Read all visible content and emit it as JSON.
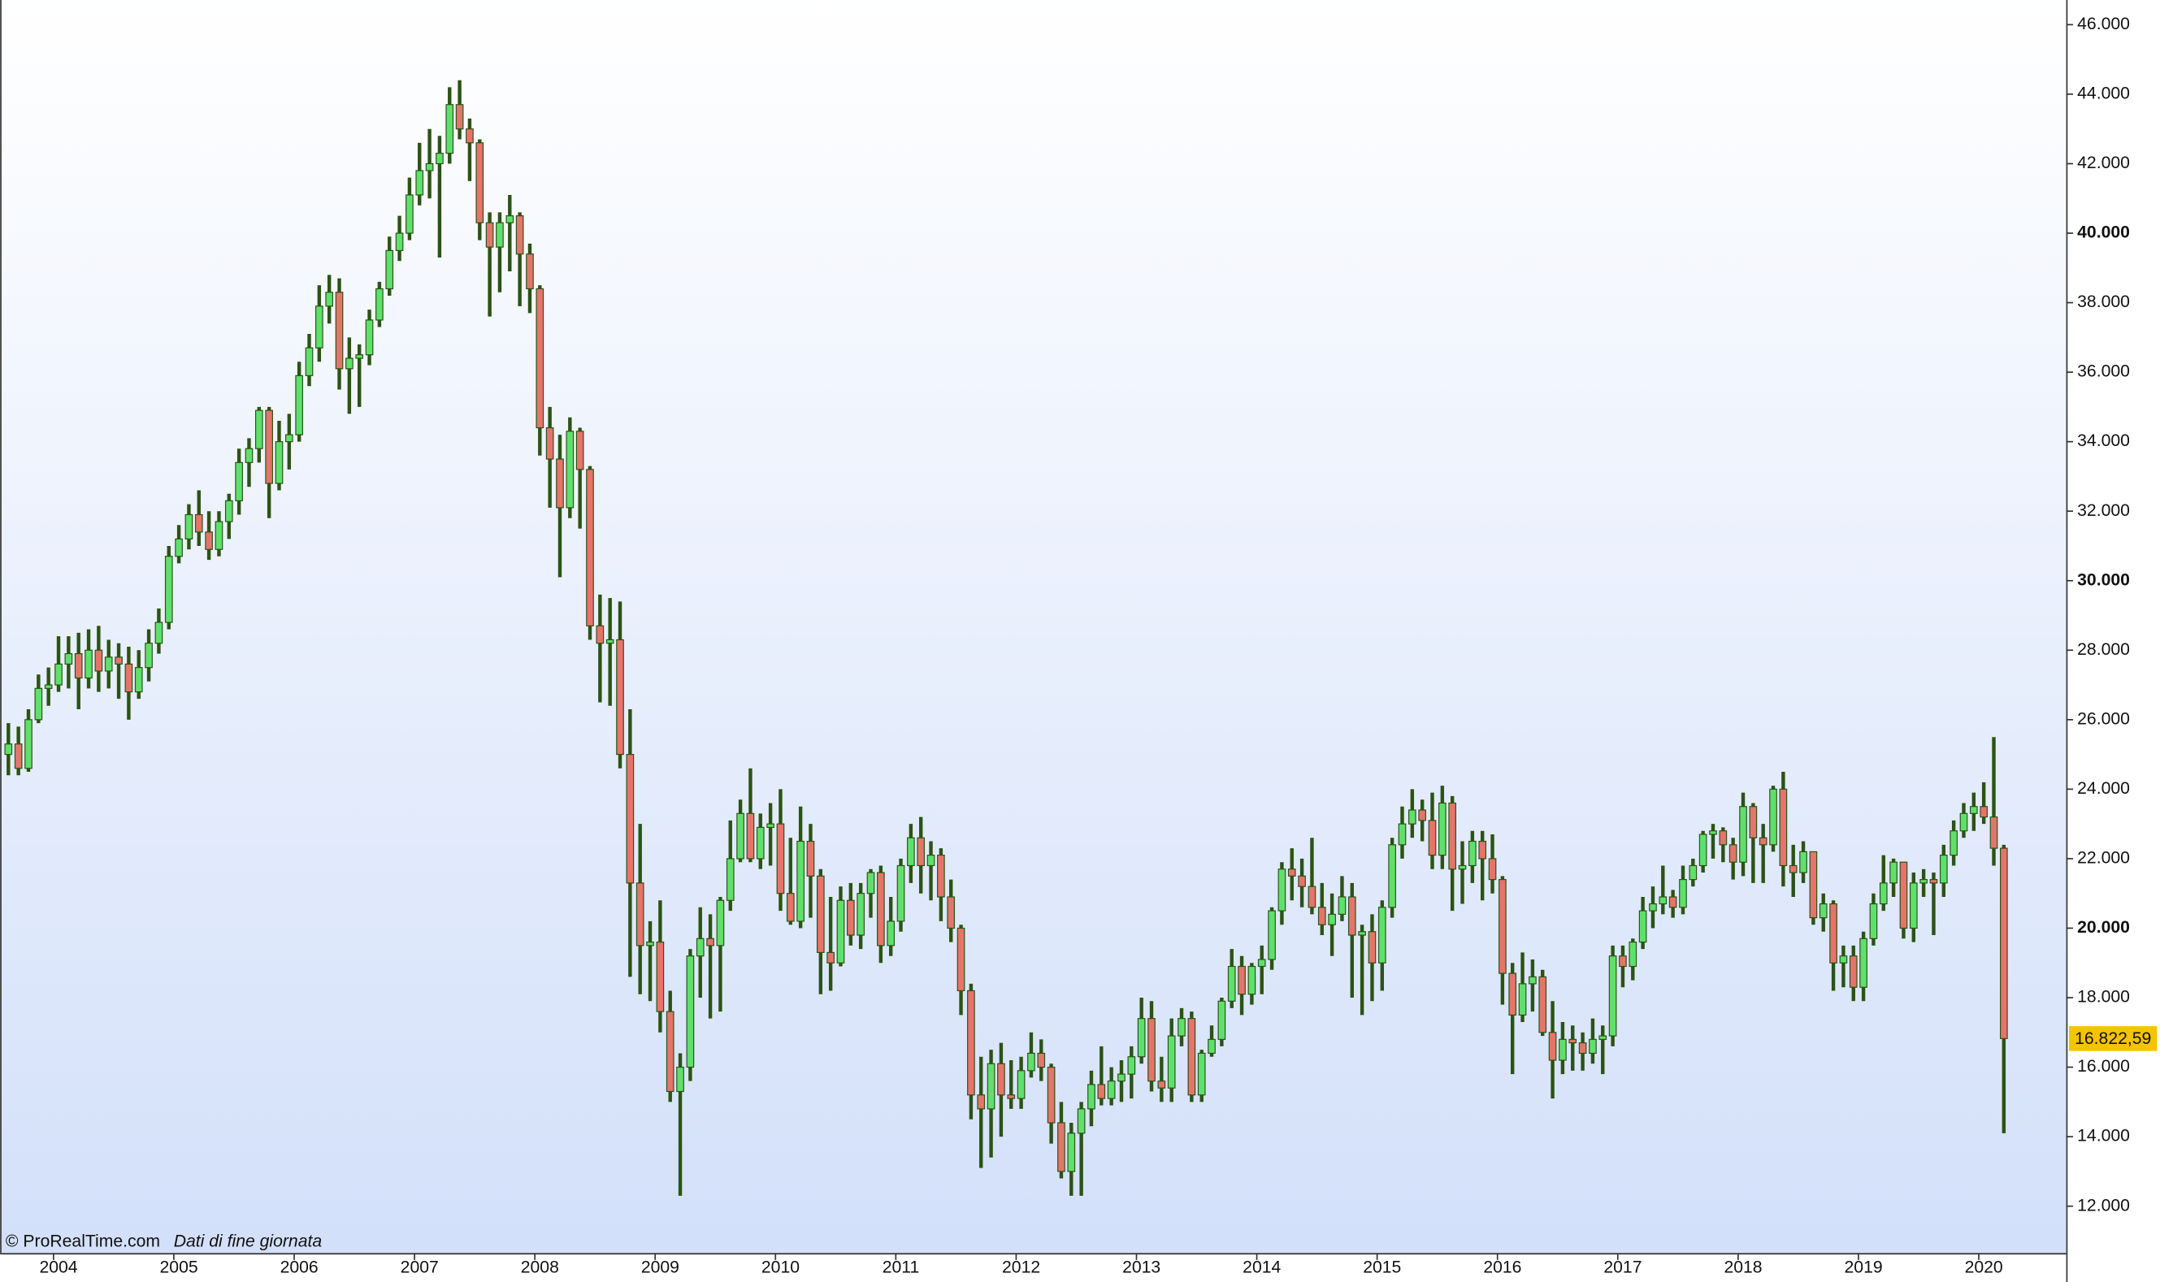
{
  "chart_data": {
    "type": "candlestick",
    "source": "© ProRealTime.com",
    "note": "Dati di fine giornata",
    "up_color": "#5fe06c",
    "down_color": "#e5746b",
    "wick_color": "#2b5314",
    "ylim": [
      10650,
      46710
    ],
    "yticks": [
      {
        "value": 12000,
        "label": "12.000"
      },
      {
        "value": 14000,
        "label": "14.000"
      },
      {
        "value": 16000,
        "label": "16.000"
      },
      {
        "value": 18000,
        "label": "18.000"
      },
      {
        "value": 20000,
        "label": "20.000"
      },
      {
        "value": 22000,
        "label": "22.000"
      },
      {
        "value": 24000,
        "label": "24.000"
      },
      {
        "value": 26000,
        "label": "26.000"
      },
      {
        "value": 28000,
        "label": "28.000"
      },
      {
        "value": 30000,
        "label": "30.000"
      },
      {
        "value": 32000,
        "label": "32.000"
      },
      {
        "value": 34000,
        "label": "34.000"
      },
      {
        "value": 36000,
        "label": "36.000"
      },
      {
        "value": 38000,
        "label": "38.000"
      },
      {
        "value": 40000,
        "label": "40.000"
      },
      {
        "value": 42000,
        "label": "42.000"
      },
      {
        "value": 44000,
        "label": "44.000"
      },
      {
        "value": 46000,
        "label": "46.000"
      }
    ],
    "last_price": {
      "value": 16822.59,
      "label": "16.822,59"
    },
    "categories": [
      null,
      null,
      null,
      null,
      null,
      "2004",
      null,
      null,
      null,
      null,
      null,
      null,
      null,
      null,
      null,
      null,
      null,
      "2005",
      null,
      null,
      null,
      null,
      null,
      null,
      null,
      null,
      null,
      null,
      null,
      "2006",
      null,
      null,
      null,
      null,
      null,
      null,
      null,
      null,
      null,
      null,
      null,
      "2007",
      null,
      null,
      null,
      null,
      null,
      null,
      null,
      null,
      null,
      null,
      null,
      "2008",
      null,
      null,
      null,
      null,
      null,
      null,
      null,
      null,
      null,
      null,
      null,
      "2009",
      null,
      null,
      null,
      null,
      null,
      null,
      null,
      null,
      null,
      null,
      null,
      "2010",
      null,
      null,
      null,
      null,
      null,
      null,
      null,
      null,
      null,
      null,
      null,
      "2011",
      null,
      null,
      null,
      null,
      null,
      null,
      null,
      null,
      null,
      null,
      null,
      "2012",
      null,
      null,
      null,
      null,
      null,
      null,
      null,
      null,
      null,
      null,
      null,
      "2013",
      null,
      null,
      null,
      null,
      null,
      null,
      null,
      null,
      null,
      null,
      null,
      "2014",
      null,
      null,
      null,
      null,
      null,
      null,
      null,
      null,
      null,
      null,
      null,
      "2015",
      null,
      null,
      null,
      null,
      null,
      null,
      null,
      null,
      null,
      null,
      null,
      "2016",
      null,
      null,
      null,
      null,
      null,
      null,
      null,
      null,
      null,
      null,
      null,
      "2017",
      null,
      null,
      null,
      null,
      null,
      null,
      null,
      null,
      null,
      null,
      null,
      "2018",
      null,
      null,
      null,
      null,
      null,
      null,
      null,
      null,
      null,
      null,
      null,
      "2019",
      null,
      null,
      null,
      null,
      null,
      null,
      null,
      null,
      null,
      null,
      null,
      "2020",
      null,
      null
    ],
    "open": [
      25000,
      25300,
      24600,
      26000,
      26900,
      27000,
      27600,
      27900,
      27200,
      28000,
      27400,
      27800,
      27600,
      26800,
      27500,
      28200,
      28800,
      30700,
      31200,
      31900,
      31400,
      30900,
      31700,
      32300,
      33400,
      33800,
      34900,
      32800,
      34000,
      34200,
      35900,
      36700,
      37900,
      38300,
      36100,
      36400,
      36500,
      37500,
      38400,
      39500,
      40000,
      41100,
      41800,
      42000,
      42300,
      43700,
      43000,
      42600,
      40300,
      39600,
      40300,
      40500,
      39400,
      38400,
      34400,
      33500,
      32100,
      34300,
      33200,
      28700,
      28200,
      28300,
      25000,
      21300,
      19500,
      19600,
      17600,
      15300,
      16000,
      19200,
      19700,
      19500,
      20800,
      22000,
      23300,
      22000,
      22900,
      23000,
      21000,
      20200,
      22500,
      21500,
      19300,
      19000,
      20800,
      19800,
      21000,
      21600,
      19500,
      20200,
      21800,
      22600,
      21800,
      22100,
      20900,
      20000,
      18200,
      15200,
      14800,
      16100,
      15200,
      15100,
      15900,
      16400,
      16000,
      14400,
      13000,
      14100,
      14800,
      15500,
      15100,
      15600,
      15800,
      16300,
      17400,
      15600,
      15400,
      16900,
      17400,
      15200,
      16400,
      16800,
      17900,
      18900,
      18100,
      18900,
      19100,
      20500,
      21700,
      21500,
      21200,
      20600,
      20100,
      20400,
      20900,
      19800,
      19900,
      19000,
      20600,
      22400,
      23000,
      23400,
      23100,
      22100,
      23600,
      21700,
      21800,
      22500,
      22000,
      21400,
      18700,
      17500,
      18400,
      18600,
      17000,
      16200,
      16800,
      16700,
      16400,
      16800,
      16900,
      19200,
      18900,
      19600,
      20500,
      20700,
      20900,
      20600,
      21400,
      21800,
      22700,
      22800,
      22400,
      21900,
      23500,
      22600,
      22400,
      24000,
      21800,
      21600,
      22200,
      20300,
      20700,
      19000,
      19200,
      18300,
      19700,
      20700,
      21300,
      21900,
      20000,
      21300,
      21400,
      21300,
      22100,
      22800,
      23300,
      23500,
      23200,
      22300
    ],
    "high": [
      25900,
      25800,
      26300,
      27300,
      27500,
      28400,
      28400,
      28500,
      28600,
      28700,
      28300,
      28200,
      28100,
      28000,
      28600,
      29200,
      31000,
      31600,
      32200,
      32600,
      32000,
      32000,
      32500,
      33800,
      34100,
      35000,
      35000,
      34600,
      34800,
      36300,
      37100,
      38500,
      38800,
      38700,
      37000,
      36800,
      37800,
      38600,
      39900,
      40500,
      41600,
      42600,
      43000,
      42800,
      44200,
      44400,
      43300,
      42700,
      40600,
      40600,
      41100,
      40600,
      39700,
      38500,
      35000,
      34200,
      34700,
      34400,
      33300,
      29600,
      29500,
      29400,
      26300,
      23000,
      20200,
      20800,
      18200,
      16400,
      19400,
      20600,
      20400,
      20900,
      23100,
      23700,
      24600,
      23300,
      23600,
      24000,
      22600,
      23500,
      23000,
      21700,
      20900,
      21200,
      21300,
      21300,
      21700,
      21800,
      20900,
      22000,
      23000,
      23200,
      22500,
      22300,
      21400,
      20100,
      18400,
      16300,
      16500,
      16700,
      16200,
      16300,
      17000,
      16800,
      16100,
      15000,
      14400,
      15000,
      15900,
      16600,
      16000,
      16200,
      16600,
      18000,
      17900,
      16300,
      17400,
      17700,
      17600,
      16500,
      17200,
      18000,
      19400,
      19200,
      19000,
      19500,
      20600,
      21900,
      22300,
      22000,
      22600,
      21300,
      21000,
      21500,
      21300,
      20100,
      20400,
      20800,
      22600,
      23500,
      24000,
      23700,
      23900,
      24100,
      23800,
      22500,
      22800,
      22800,
      22700,
      21500,
      19000,
      19300,
      19100,
      18800,
      17900,
      17300,
      17200,
      17000,
      17400,
      17200,
      19500,
      19500,
      19700,
      20900,
      21200,
      21800,
      21100,
      21800,
      22000,
      22800,
      23000,
      22900,
      22600,
      23900,
      23600,
      23000,
      24100,
      24500,
      22400,
      22500,
      22200,
      21000,
      20800,
      19500,
      19500,
      19900,
      21000,
      22100,
      22000,
      21900,
      21600,
      21700,
      21600,
      22400,
      23100,
      23600,
      23900,
      24200,
      25500,
      22400
    ],
    "low": [
      24400,
      24400,
      24500,
      25900,
      26400,
      26800,
      26900,
      26300,
      26900,
      26800,
      26900,
      26600,
      26000,
      26600,
      27100,
      27900,
      28600,
      30500,
      30900,
      31000,
      30600,
      30700,
      31200,
      31900,
      32700,
      33400,
      31800,
      32600,
      33200,
      34000,
      35600,
      36300,
      37400,
      35500,
      34800,
      35000,
      36200,
      37300,
      38200,
      39200,
      39800,
      40800,
      41000,
      39300,
      42000,
      42700,
      41500,
      39800,
      37600,
      38300,
      38900,
      37900,
      37700,
      33600,
      32100,
      30100,
      31800,
      31500,
      28300,
      26500,
      26400,
      24600,
      18600,
      18100,
      17900,
      17000,
      15000,
      12300,
      15600,
      18000,
      17400,
      17600,
      20500,
      21900,
      21900,
      21700,
      21800,
      20500,
      20100,
      20000,
      20300,
      18100,
      18200,
      18900,
      19500,
      19400,
      20300,
      19000,
      19200,
      19900,
      21300,
      21000,
      20800,
      20200,
      19600,
      17500,
      14500,
      13100,
      13400,
      14000,
      14800,
      14800,
      15700,
      15600,
      13800,
      12800,
      12300,
      12300,
      14300,
      14900,
      14900,
      15000,
      15100,
      16100,
      15300,
      15000,
      15000,
      16600,
      15000,
      15000,
      16300,
      16600,
      17700,
      17500,
      17800,
      18100,
      18800,
      20100,
      20800,
      20600,
      20400,
      19800,
      19200,
      20200,
      18000,
      17500,
      17900,
      18200,
      20300,
      22000,
      22600,
      22500,
      21700,
      21700,
      20500,
      20700,
      21300,
      20800,
      21000,
      17800,
      15800,
      17300,
      17600,
      16900,
      15100,
      15800,
      15900,
      15900,
      16100,
      15800,
      16600,
      18300,
      18500,
      19400,
      20000,
      20400,
      20300,
      20400,
      21200,
      21600,
      22000,
      21900,
      21400,
      21500,
      21300,
      21300,
      22200,
      21200,
      20900,
      21300,
      20100,
      19900,
      18200,
      18300,
      17900,
      17900,
      19500,
      20500,
      20900,
      19700,
      19600,
      20900,
      19800,
      20900,
      21800,
      22600,
      22800,
      23000,
      21800,
      14100
    ],
    "close": [
      25300,
      24600,
      26000,
      26900,
      27000,
      27600,
      27900,
      27200,
      28000,
      27400,
      27800,
      27600,
      26800,
      27500,
      28200,
      28800,
      30700,
      31200,
      31900,
      31400,
      30900,
      31700,
      32300,
      33400,
      33800,
      34900,
      32800,
      34000,
      34200,
      35900,
      36700,
      37900,
      38300,
      36100,
      36400,
      36500,
      37500,
      38400,
      39500,
      40000,
      41100,
      41800,
      42000,
      42300,
      43700,
      43000,
      42600,
      40300,
      39600,
      40300,
      40500,
      39400,
      38400,
      34400,
      33500,
      32100,
      34300,
      33200,
      28700,
      28200,
      28300,
      25000,
      21300,
      19500,
      19600,
      17600,
      15300,
      16000,
      19200,
      19700,
      19500,
      20800,
      22000,
      23300,
      22000,
      22900,
      23000,
      21000,
      20200,
      22500,
      21500,
      19300,
      19000,
      20800,
      19800,
      21000,
      21600,
      19500,
      20200,
      21800,
      22600,
      21800,
      22100,
      20900,
      20000,
      18200,
      15200,
      14800,
      16100,
      15200,
      15100,
      15900,
      16400,
      16000,
      14400,
      13000,
      14100,
      14800,
      15500,
      15100,
      15600,
      15800,
      16300,
      17400,
      15600,
      15400,
      16900,
      17400,
      15200,
      16400,
      16800,
      17900,
      18900,
      18100,
      18900,
      19100,
      20500,
      21700,
      21500,
      21200,
      20600,
      20100,
      20400,
      20900,
      19800,
      19900,
      19000,
      20600,
      22400,
      23000,
      23400,
      23100,
      22100,
      23600,
      21700,
      21800,
      22500,
      22000,
      21400,
      18700,
      17500,
      18400,
      18600,
      17000,
      16200,
      16800,
      16700,
      16400,
      16800,
      16900,
      19200,
      18900,
      19600,
      20500,
      20700,
      20900,
      20600,
      21400,
      21800,
      22700,
      22800,
      22400,
      21900,
      23500,
      22600,
      22400,
      24000,
      21800,
      21600,
      22200,
      20300,
      20700,
      19000,
      19200,
      18300,
      19700,
      20700,
      21300,
      21900,
      20000,
      21300,
      21400,
      21300,
      22100,
      22800,
      23300,
      23500,
      23200,
      22300,
      16822.59
    ]
  }
}
